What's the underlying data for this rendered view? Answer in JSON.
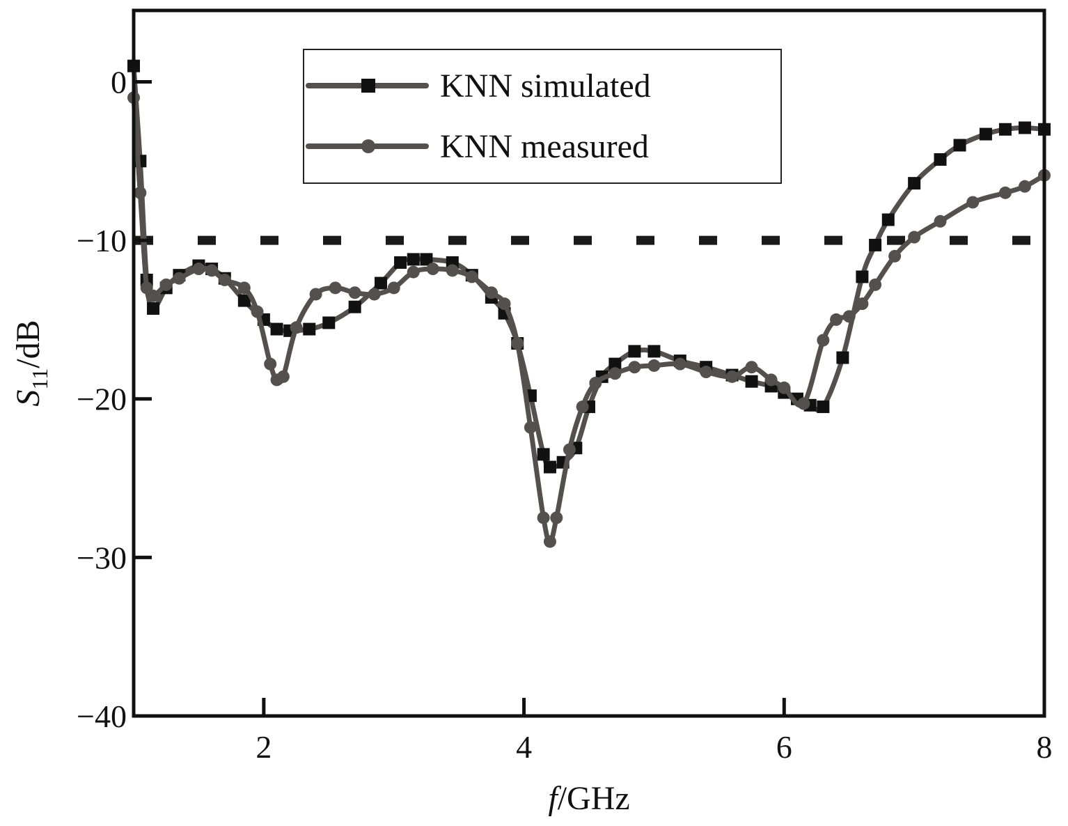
{
  "chart_data": {
    "type": "line",
    "title": "",
    "xlabel": {
      "italic": "f",
      "rest": "/GHz"
    },
    "ylabel": {
      "italic": "S",
      "sub": "11",
      "rest": "/dB"
    },
    "xlim": [
      1,
      8
    ],
    "ylim": [
      -40,
      4.5
    ],
    "x_ticks": [
      2,
      4,
      6,
      8
    ],
    "x_tick_labels": [
      "2",
      "4",
      "6",
      "8"
    ],
    "y_ticks": [
      0,
      -10,
      -20,
      -30,
      -40
    ],
    "y_tick_labels": [
      "0",
      "−10",
      "−20",
      "−30",
      "−40"
    ],
    "grid": false,
    "legend": {
      "placement": "top-center"
    },
    "reference_line": {
      "y": -10,
      "style": "dashed",
      "color": "#1a1a1a"
    },
    "series": [
      {
        "name": "KNN simulated",
        "marker": "square",
        "color": "#555050",
        "marker_color": "#111111",
        "x": [
          1.0,
          1.05,
          1.1,
          1.15,
          1.25,
          1.35,
          1.5,
          1.6,
          1.7,
          1.85,
          2.0,
          2.1,
          2.2,
          2.35,
          2.5,
          2.7,
          2.9,
          3.05,
          3.15,
          3.25,
          3.45,
          3.6,
          3.75,
          3.85,
          3.95,
          4.05,
          4.15,
          4.2,
          4.3,
          4.4,
          4.5,
          4.6,
          4.7,
          4.85,
          5.0,
          5.2,
          5.4,
          5.6,
          5.75,
          5.9,
          6.0,
          6.1,
          6.2,
          6.3,
          6.45,
          6.6,
          6.7,
          6.8,
          7.0,
          7.2,
          7.35,
          7.55,
          7.7,
          7.85,
          8.0
        ],
        "y": [
          1.0,
          -5.0,
          -12.5,
          -14.3,
          -13.0,
          -12.2,
          -11.6,
          -11.8,
          -12.4,
          -13.8,
          -15.0,
          -15.6,
          -15.7,
          -15.6,
          -15.2,
          -14.2,
          -12.7,
          -11.4,
          -11.2,
          -11.2,
          -11.4,
          -12.2,
          -13.6,
          -14.6,
          -16.5,
          -19.8,
          -23.5,
          -24.3,
          -24.0,
          -23.1,
          -20.5,
          -18.6,
          -17.8,
          -17.0,
          -17.0,
          -17.6,
          -18.0,
          -18.5,
          -18.9,
          -19.2,
          -19.6,
          -20.0,
          -20.4,
          -20.5,
          -17.4,
          -12.3,
          -10.3,
          -8.7,
          -6.4,
          -4.9,
          -4.0,
          -3.3,
          -3.0,
          -2.9,
          -3.0
        ]
      },
      {
        "name": "KNN measured",
        "marker": "circle",
        "color": "#555050",
        "marker_color": "#555050",
        "x": [
          1.0,
          1.05,
          1.1,
          1.15,
          1.25,
          1.35,
          1.5,
          1.6,
          1.7,
          1.85,
          1.95,
          2.05,
          2.1,
          2.15,
          2.25,
          2.4,
          2.55,
          2.7,
          2.85,
          3.0,
          3.15,
          3.3,
          3.45,
          3.6,
          3.75,
          3.85,
          3.95,
          4.05,
          4.15,
          4.2,
          4.25,
          4.35,
          4.45,
          4.55,
          4.7,
          4.85,
          5.0,
          5.2,
          5.4,
          5.6,
          5.75,
          5.9,
          6.0,
          6.15,
          6.3,
          6.4,
          6.5,
          6.6,
          6.7,
          6.85,
          7.0,
          7.2,
          7.45,
          7.7,
          7.85,
          8.0
        ],
        "y": [
          -1.0,
          -7.0,
          -13.0,
          -13.5,
          -12.8,
          -12.4,
          -11.8,
          -11.9,
          -12.5,
          -13.0,
          -14.5,
          -17.8,
          -18.8,
          -18.6,
          -15.5,
          -13.4,
          -13.0,
          -13.3,
          -13.4,
          -13.0,
          -12.0,
          -11.8,
          -11.9,
          -12.3,
          -13.3,
          -14.0,
          -16.5,
          -21.8,
          -27.5,
          -29.0,
          -27.5,
          -23.2,
          -20.5,
          -19.0,
          -18.4,
          -18.0,
          -17.9,
          -17.8,
          -18.3,
          -18.6,
          -18.0,
          -18.8,
          -19.3,
          -20.3,
          -16.3,
          -15.0,
          -14.8,
          -14.0,
          -12.8,
          -11.0,
          -9.8,
          -8.8,
          -7.6,
          -7.0,
          -6.6,
          -5.9
        ]
      }
    ]
  }
}
